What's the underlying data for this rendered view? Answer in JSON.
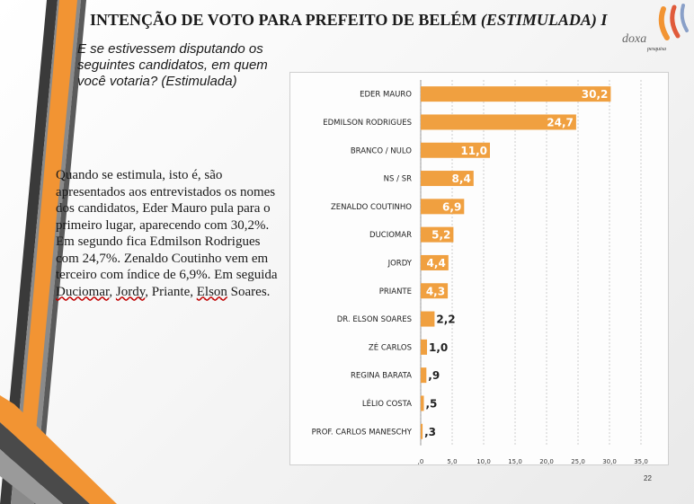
{
  "slide": {
    "title": "INTENÇÃO DE VOTO PARA PREFEITO DE BELÉM",
    "title_suffix": "(ESTIMULADA) I",
    "question": "E se estivessem disputando os seguintes candidatos, em quem você votaria? (Estimulada)",
    "page_number": "22"
  },
  "logo": {
    "name": "doxa",
    "tagline": "pesquisa"
  },
  "body": {
    "part1": "Quando se estimula, isto é, são apresentados aos entrevistados os nomes dos candidatos, Eder Mauro pula para o primeiro lugar, aparecendo com 30,2%. Em segundo fica Edmilson Rodrigues com 24,7%. Zenaldo Coutinho vem em terceiro com índice de 6,9%. Em seguida ",
    "w1": "Duciomar",
    "sep1": ", ",
    "w2": "Jordy",
    "sep2": ", Priante, ",
    "w3": "Elson",
    "part2": " Soares."
  },
  "chart_data": {
    "type": "bar",
    "orientation": "horizontal",
    "categories": [
      "EDER MAURO",
      "EDMILSON RODRIGUES",
      "BRANCO / NULO",
      "NS / SR",
      "ZENALDO COUTINHO",
      "DUCIOMAR",
      "JORDY",
      "PRIANTE",
      "DR. ELSON SOARES",
      "ZÉ CARLOS",
      "REGINA BARATA",
      "LÉLIO COSTA",
      "PROF. CARLOS MANESCHY"
    ],
    "values": [
      30.2,
      24.7,
      11.0,
      8.4,
      6.9,
      5.2,
      4.4,
      4.3,
      2.2,
      1.0,
      0.9,
      0.5,
      0.3
    ],
    "value_labels": [
      "30,2",
      "24,7",
      "11,0",
      "8,4",
      "6,9",
      "5,2",
      "4,4",
      "4,3",
      "2,2",
      "1,0",
      ",9",
      ",5",
      ",3"
    ],
    "xlim": [
      0,
      35
    ],
    "ticks": [
      0,
      5,
      10,
      15,
      20,
      25,
      30,
      35
    ],
    "tick_labels": [
      ",0",
      "5,0",
      "10,0",
      "15,0",
      "20,0",
      "25,0",
      "30,0",
      "35,0"
    ],
    "bar_color": "#f0a040",
    "grid": true,
    "label_color_inside": "#ffffff",
    "label_color_outside": "#222222"
  }
}
